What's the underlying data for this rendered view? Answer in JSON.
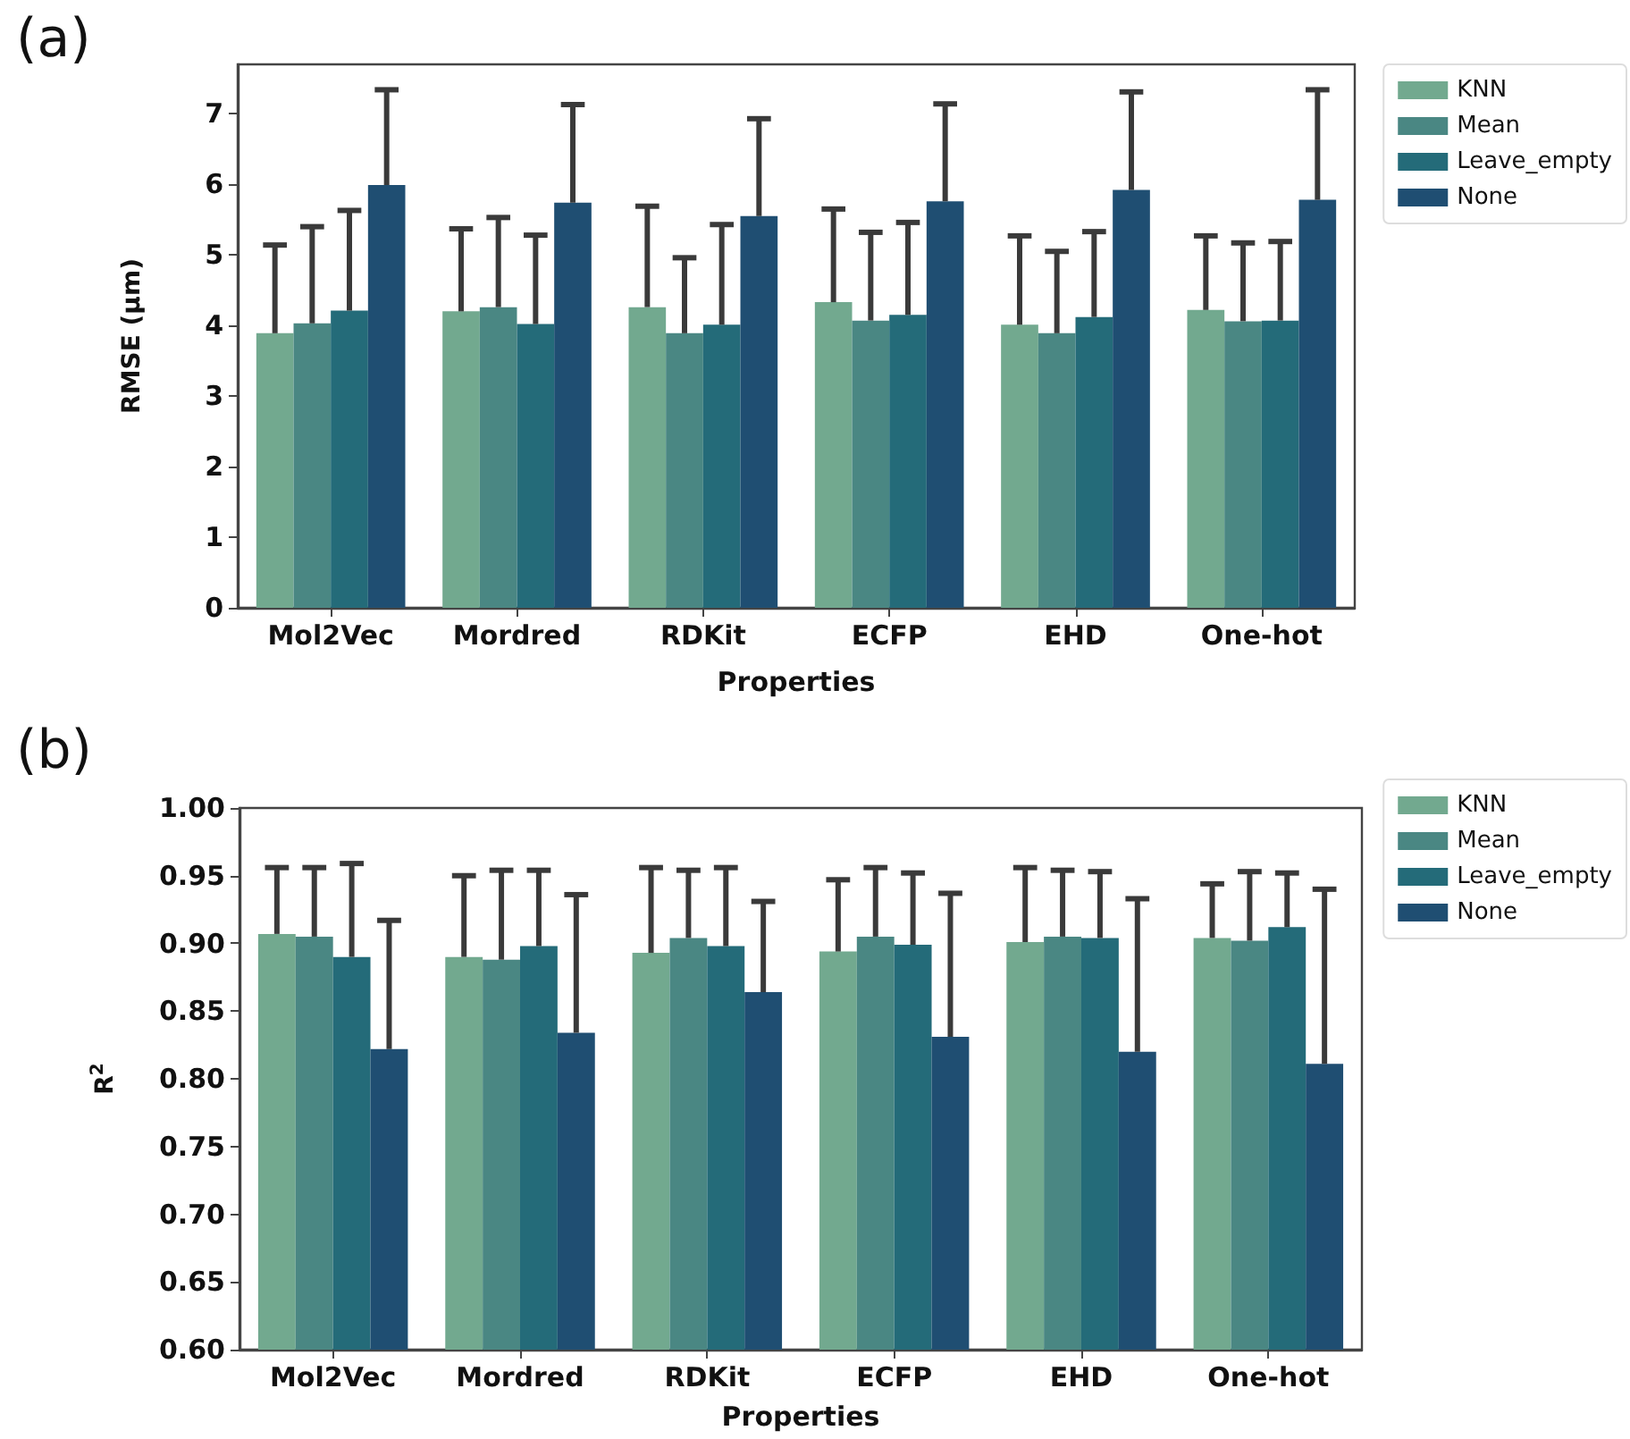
{
  "chart_data": [
    {
      "type": "bar",
      "title": "(a)",
      "xlabel": "Properties",
      "ylabel": "RMSE (μm)",
      "categories": [
        "Mol2Vec",
        "Mordred",
        "RDKit",
        "ECFP",
        "EHD",
        "One-hot"
      ],
      "ylim": [
        0,
        7.7
      ],
      "yticks": [
        0,
        1,
        2,
        3,
        4,
        5,
        6,
        7
      ],
      "legend": "top right",
      "grid": false,
      "series": [
        {
          "name": "KNN",
          "color": "#72a98f",
          "values": [
            3.89,
            4.2,
            4.26,
            4.33,
            4.01,
            4.22
          ],
          "errors": [
            [
              3.89,
              5.14
            ],
            [
              4.2,
              5.37
            ],
            [
              4.26,
              5.69
            ],
            [
              4.33,
              5.65
            ],
            [
              4.01,
              5.27
            ],
            [
              4.22,
              5.27
            ]
          ]
        },
        {
          "name": "Mean",
          "color": "#4a8783",
          "values": [
            4.03,
            4.26,
            3.89,
            4.07,
            3.89,
            4.06
          ],
          "errors": [
            [
              4.03,
              5.4
            ],
            [
              4.26,
              5.53
            ],
            [
              3.89,
              4.96
            ],
            [
              4.07,
              5.32
            ],
            [
              3.89,
              5.05
            ],
            [
              4.06,
              5.17
            ]
          ]
        },
        {
          "name": "Leave_empty",
          "color": "#246b79",
          "values": [
            4.21,
            4.02,
            4.01,
            4.15,
            4.12,
            4.07
          ],
          "errors": [
            [
              4.21,
              5.63
            ],
            [
              4.02,
              5.28
            ],
            [
              4.01,
              5.43
            ],
            [
              4.15,
              5.46
            ],
            [
              4.12,
              5.33
            ],
            [
              4.07,
              5.19
            ]
          ]
        },
        {
          "name": "None",
          "color": "#1f4e72",
          "values": [
            5.99,
            5.74,
            5.55,
            5.76,
            5.92,
            5.78
          ],
          "errors": [
            [
              5.99,
              7.34
            ],
            [
              5.74,
              7.13
            ],
            [
              5.55,
              6.93
            ],
            [
              5.76,
              7.14
            ],
            [
              5.92,
              7.31
            ],
            [
              5.78,
              7.34
            ]
          ]
        }
      ]
    },
    {
      "type": "bar",
      "title": "(b)",
      "xlabel": "Properties",
      "ylabel": "R$^{2}$",
      "categories": [
        "Mol2Vec",
        "Mordred",
        "RDKit",
        "ECFP",
        "EHD",
        "One-hot"
      ],
      "ylim": [
        0.6,
        1.0
      ],
      "yticks": [
        {
          "value": 0.6,
          "label": "0.60"
        },
        {
          "value": 0.65,
          "label": "0.65"
        },
        {
          "value": 0.7,
          "label": "0.70"
        },
        {
          "value": 0.75,
          "label": "0.75"
        },
        {
          "value": 0.8,
          "label": "0.80"
        },
        {
          "value": 0.85,
          "label": "0.85"
        },
        {
          "value": 0.9,
          "label": "0.90"
        },
        {
          "value": 0.95,
          "label": "0.95"
        },
        {
          "value": 1.0,
          "label": "1.00"
        }
      ],
      "legend": "top right",
      "grid": false,
      "series": [
        {
          "name": "KNN",
          "color": "#72a98f",
          "values": [
            0.907,
            0.89,
            0.893,
            0.894,
            0.901,
            0.904
          ],
          "errors": [
            [
              0.907,
              0.956
            ],
            [
              0.89,
              0.95
            ],
            [
              0.893,
              0.956
            ],
            [
              0.894,
              0.947
            ],
            [
              0.901,
              0.956
            ],
            [
              0.904,
              0.944
            ]
          ]
        },
        {
          "name": "Mean",
          "color": "#4a8783",
          "values": [
            0.905,
            0.888,
            0.904,
            0.905,
            0.905,
            0.902
          ],
          "errors": [
            [
              0.905,
              0.956
            ],
            [
              0.888,
              0.954
            ],
            [
              0.904,
              0.954
            ],
            [
              0.905,
              0.956
            ],
            [
              0.905,
              0.954
            ],
            [
              0.902,
              0.953
            ]
          ]
        },
        {
          "name": "Leave_empty",
          "color": "#246b79",
          "values": [
            0.89,
            0.898,
            0.898,
            0.899,
            0.904,
            0.912
          ],
          "errors": [
            [
              0.89,
              0.959
            ],
            [
              0.898,
              0.954
            ],
            [
              0.898,
              0.956
            ],
            [
              0.899,
              0.952
            ],
            [
              0.904,
              0.953
            ],
            [
              0.912,
              0.952
            ]
          ]
        },
        {
          "name": "None",
          "color": "#1f4e72",
          "values": [
            0.822,
            0.834,
            0.864,
            0.831,
            0.82,
            0.811
          ],
          "errors": [
            [
              0.822,
              0.917
            ],
            [
              0.834,
              0.936
            ],
            [
              0.864,
              0.931
            ],
            [
              0.831,
              0.937
            ],
            [
              0.82,
              0.933
            ],
            [
              0.811,
              0.94
            ]
          ]
        }
      ]
    }
  ]
}
